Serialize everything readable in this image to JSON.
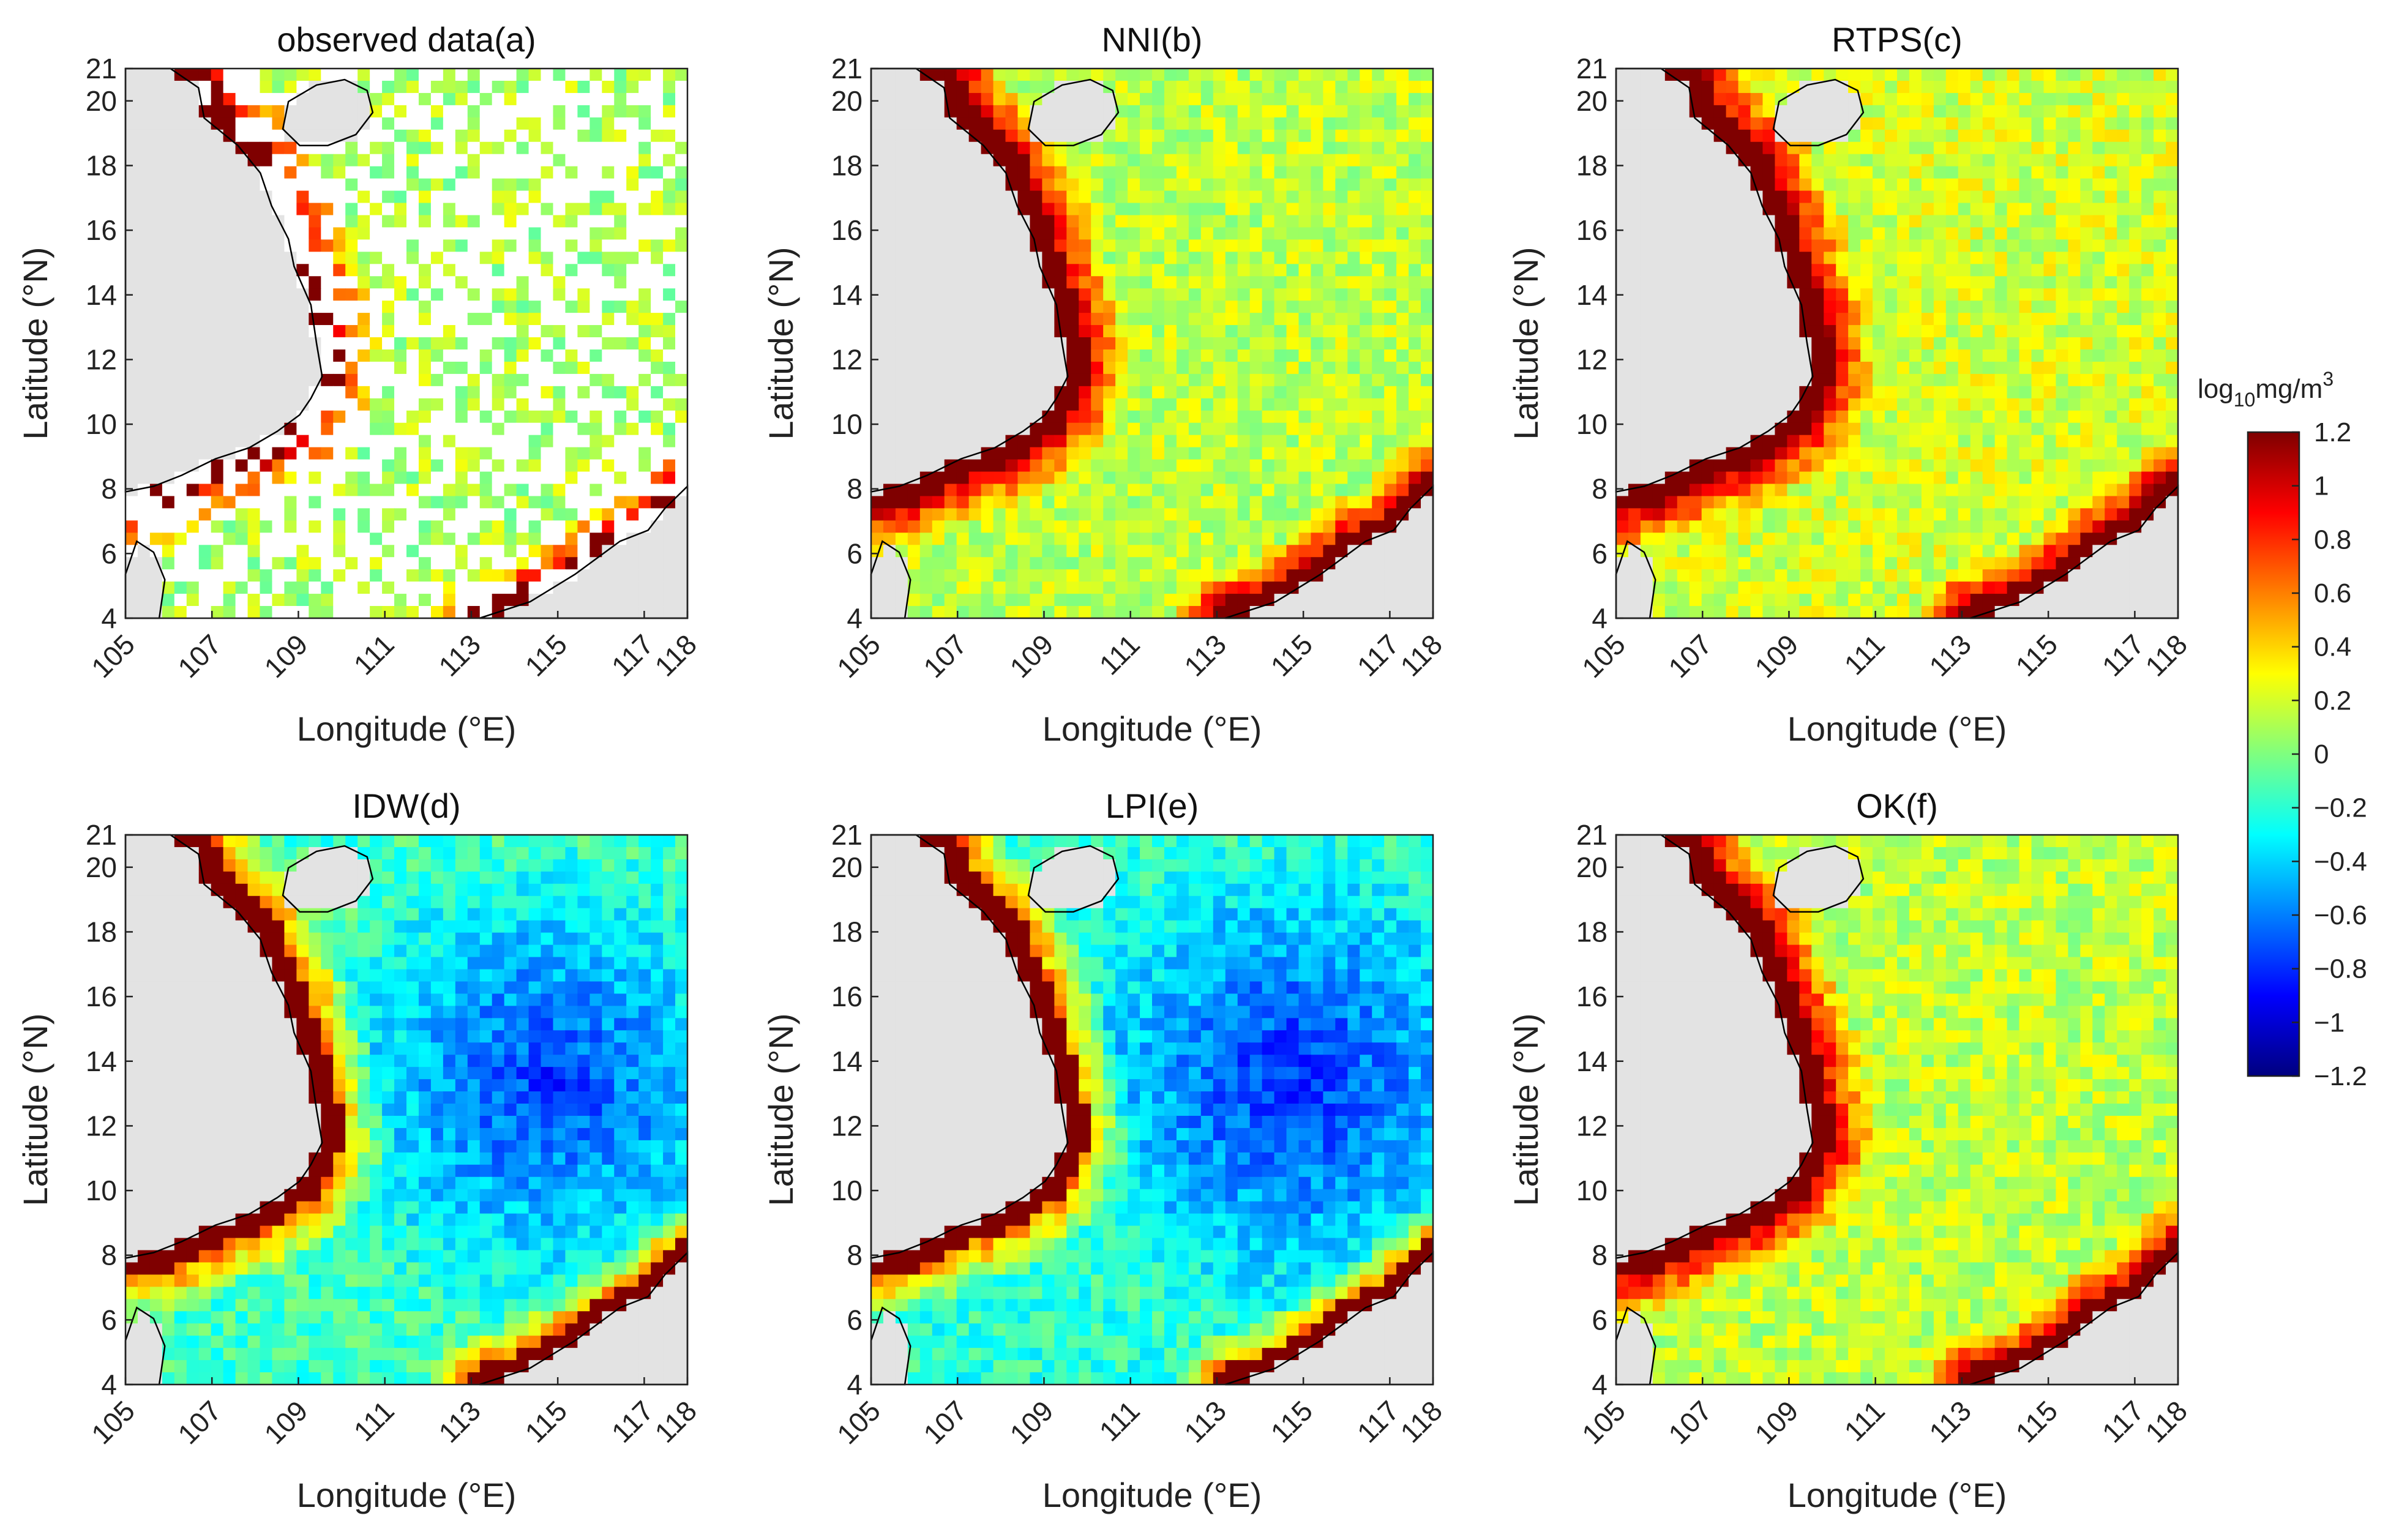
{
  "figure": {
    "type": "map-grid",
    "rows": 2,
    "cols": 3
  },
  "chart_data": [
    {
      "type": "heatmap",
      "title": "observed data(a)",
      "xlabel": "Longitude (°E)",
      "ylabel": "Latitude (°N)",
      "xlim": [
        105,
        118
      ],
      "ylim": [
        4,
        21
      ],
      "xticks": [
        "105",
        "107",
        "109",
        "111",
        "113",
        "115",
        "117",
        "118"
      ],
      "yticks": [
        "4",
        "6",
        "8",
        "10",
        "12",
        "14",
        "16",
        "18",
        "20",
        "21"
      ],
      "background_level": 0.1,
      "note": "sparse observations; many missing (white) pixels"
    },
    {
      "type": "heatmap",
      "title": "NNI(b)",
      "xlabel": "Longitude (°E)",
      "ylabel": "Latitude (°N)",
      "xlim": [
        105,
        118
      ],
      "ylim": [
        4,
        21
      ],
      "xticks": [
        "105",
        "107",
        "109",
        "111",
        "113",
        "115",
        "117",
        "118"
      ],
      "yticks": [
        "4",
        "6",
        "8",
        "10",
        "12",
        "14",
        "16",
        "18",
        "20",
        "21"
      ],
      "background_level": 0.15
    },
    {
      "type": "heatmap",
      "title": "RTPS(c)",
      "xlabel": "Longitude (°E)",
      "ylabel": "Latitude (°N)",
      "xlim": [
        105,
        118
      ],
      "ylim": [
        4,
        21
      ],
      "xticks": [
        "105",
        "107",
        "109",
        "111",
        "113",
        "115",
        "117",
        "118"
      ],
      "yticks": [
        "4",
        "6",
        "8",
        "10",
        "12",
        "14",
        "16",
        "18",
        "20",
        "21"
      ],
      "background_level": 0.2
    },
    {
      "type": "heatmap",
      "title": "IDW(d)",
      "xlabel": "Longitude (°E)",
      "ylabel": "Latitude (°N)",
      "xlim": [
        105,
        118
      ],
      "ylim": [
        4,
        21
      ],
      "xticks": [
        "105",
        "107",
        "109",
        "111",
        "113",
        "115",
        "117",
        "118"
      ],
      "yticks": [
        "4",
        "6",
        "8",
        "10",
        "12",
        "14",
        "16",
        "18",
        "20",
        "21"
      ],
      "background_level": -0.15
    },
    {
      "type": "heatmap",
      "title": "LPI(e)",
      "xlabel": "Longitude (°E)",
      "ylabel": "Latitude (°N)",
      "xlim": [
        105,
        118
      ],
      "ylim": [
        4,
        21
      ],
      "xticks": [
        "105",
        "107",
        "109",
        "111",
        "113",
        "115",
        "117",
        "118"
      ],
      "yticks": [
        "4",
        "6",
        "8",
        "10",
        "12",
        "14",
        "16",
        "18",
        "20",
        "21"
      ],
      "background_level": -0.2
    },
    {
      "type": "heatmap",
      "title": "OK(f)",
      "xlabel": "Longitude (°E)",
      "ylabel": "Latitude (°N)",
      "xlim": [
        105,
        118
      ],
      "ylim": [
        4,
        21
      ],
      "xticks": [
        "105",
        "107",
        "109",
        "111",
        "113",
        "115",
        "117",
        "118"
      ],
      "yticks": [
        "4",
        "6",
        "8",
        "10",
        "12",
        "14",
        "16",
        "18",
        "20",
        "21"
      ],
      "background_level": 0.15
    }
  ],
  "colorbar": {
    "label_main": "log",
    "label_sub": "10",
    "label_unit": "mg/m",
    "label_sup": "3",
    "range": [
      -1.2,
      1.2
    ],
    "ticks": [
      {
        "v": 1.2,
        "t": "1.2"
      },
      {
        "v": 1.0,
        "t": "1"
      },
      {
        "v": 0.8,
        "t": "0.8"
      },
      {
        "v": 0.6,
        "t": "0.6"
      },
      {
        "v": 0.4,
        "t": "0.4"
      },
      {
        "v": 0.2,
        "t": "0.2"
      },
      {
        "v": 0.0,
        "t": "0"
      },
      {
        "v": -0.2,
        "t": "−0.2"
      },
      {
        "v": -0.4,
        "t": "−0.4"
      },
      {
        "v": -0.6,
        "t": "−0.6"
      },
      {
        "v": -0.8,
        "t": "−0.8"
      },
      {
        "v": -1.0,
        "t": "−1"
      },
      {
        "v": -1.2,
        "t": "−1.2"
      }
    ],
    "colors": [
      "#00007f",
      "#0000ff",
      "#007fff",
      "#00ffff",
      "#7fff7f",
      "#ffff00",
      "#ff7f00",
      "#ff0000",
      "#7f0000"
    ]
  },
  "land_color": "#e3e3e3"
}
